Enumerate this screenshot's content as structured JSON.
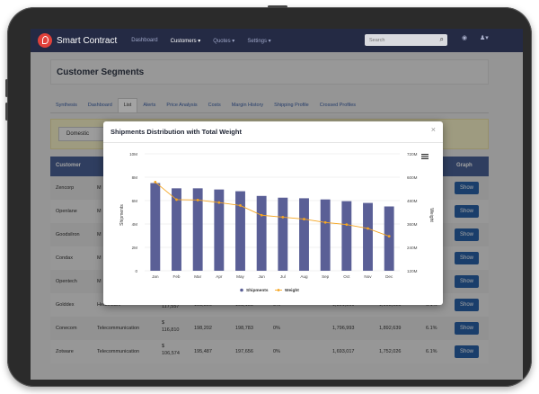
{
  "nav": {
    "brand": "Smart Contract",
    "items": [
      "Dashboard",
      "Customers ▾",
      "Quotes ▾",
      "Settings ▾"
    ],
    "search_placeholder": "Search",
    "icons": [
      "search-icon",
      "help-icon",
      "user-icon"
    ]
  },
  "page": {
    "title": "Customer Segments"
  },
  "tabs": [
    "Synthesis",
    "Dashboard",
    "List",
    "Alerts",
    "Price Analysis",
    "Costs",
    "Margin History",
    "Shipping Profile",
    "Crossed Profiles"
  ],
  "active_tab": "List",
  "filter": {
    "selected": "Domestic"
  },
  "table": {
    "headers": {
      "customer": "Customer",
      "graph": "Graph"
    },
    "partial_rows": [
      {
        "customer": "Zencorp",
        "segment": "M",
        "show": "Show"
      },
      {
        "customer": "Openlane",
        "segment": "M",
        "show": "Show"
      },
      {
        "customer": "Goodsilron",
        "segment": "M",
        "show": "Show"
      },
      {
        "customer": "Condax",
        "segment": "M",
        "show": "Show"
      },
      {
        "customer": "Opentech",
        "segment": "M",
        "show": "Show"
      }
    ],
    "rows": [
      {
        "customer": "Golddex",
        "segment": "Healthcare",
        "c1a": "$",
        "c1b": "117,557",
        "c2": "198,800",
        "c3": "198,155",
        "c4": "0%",
        "c5": "1,801,800",
        "c6": "1,903,025",
        "c7": "6.1%",
        "show": "Show"
      },
      {
        "customer": "Conecom",
        "segment": "Telecommunication",
        "c1a": "$",
        "c1b": "116,810",
        "c2": "198,202",
        "c3": "198,783",
        "c4": "0%",
        "c5": "1,796,993",
        "c6": "1,892,639",
        "c7": "6.1%",
        "show": "Show"
      },
      {
        "customer": "Zotware",
        "segment": "Telecommunication",
        "c1a": "$",
        "c1b": "106,574",
        "c2": "195,487",
        "c3": "197,656",
        "c4": "0%",
        "c5": "1,693,017",
        "c6": "1,752,026",
        "c7": "6.1%",
        "show": "Show"
      }
    ]
  },
  "modal": {
    "title": "Shipments Distribution with Total Weight",
    "close": "×"
  },
  "chart_data": {
    "type": "bar",
    "categories": [
      "Jan",
      "Feb",
      "Mar",
      "Apr",
      "May",
      "Jun",
      "Jul",
      "Aug",
      "Sep",
      "Oct",
      "Nov",
      "Dec"
    ],
    "series": [
      {
        "name": "Shipments",
        "type": "bar",
        "axis": "left",
        "values": [
          7500000,
          7050000,
          7050000,
          6950000,
          6800000,
          6400000,
          6250000,
          6200000,
          6100000,
          5950000,
          5800000,
          5500000
        ]
      },
      {
        "name": "Weight",
        "type": "line",
        "axis": "right",
        "values": [
          575000000,
          485000000,
          483000000,
          470000000,
          455000000,
          405000000,
          395000000,
          385000000,
          368000000,
          357000000,
          337000000,
          297000000
        ]
      }
    ],
    "y_left": {
      "label": "Shipments",
      "range": [
        0,
        10000000
      ],
      "ticks": [
        "0",
        "2M",
        "4M",
        "6M",
        "8M",
        "10M"
      ]
    },
    "y_right": {
      "label": "Weight",
      "range": [
        120000000,
        720000000
      ],
      "ticks": [
        "120M",
        "240M",
        "360M",
        "480M",
        "600M",
        "720M"
      ]
    },
    "legend": {
      "position": "bottom",
      "entries": [
        "Shipments",
        "Weight"
      ]
    },
    "menu_icon": "hamburger-icon",
    "colors": {
      "bar": "#5a5f96",
      "line": "#f5a623"
    },
    "grid": true
  }
}
